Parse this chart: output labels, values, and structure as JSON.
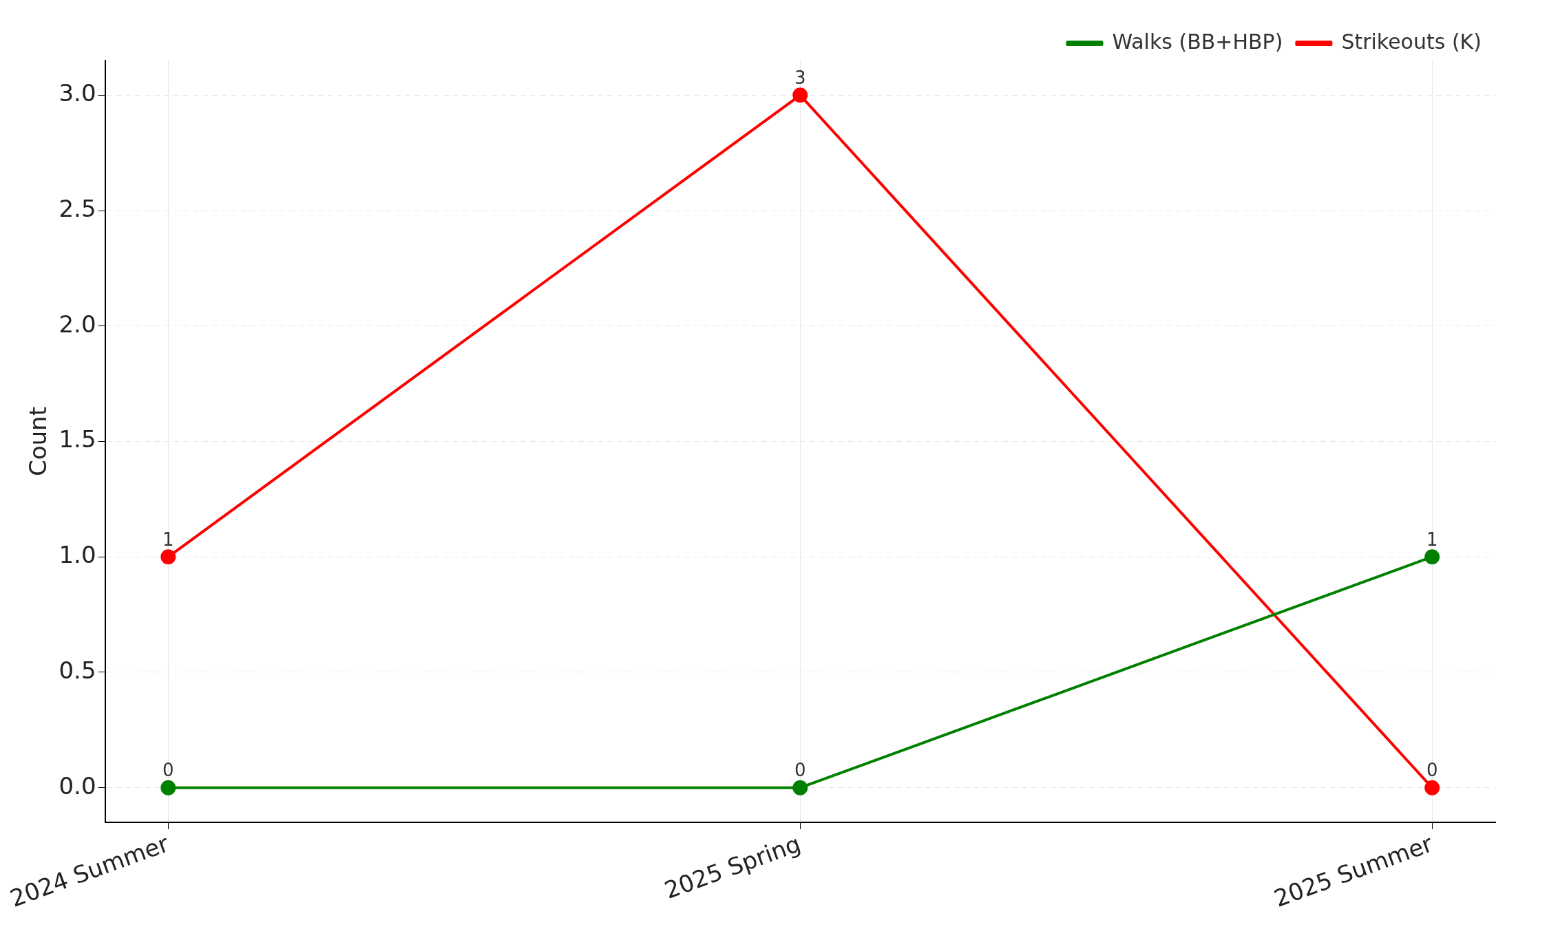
{
  "chart_data": {
    "type": "line",
    "ylabel": "Count",
    "categories": [
      "2024 Summer",
      "2025 Spring",
      "2025 Summer"
    ],
    "series": [
      {
        "name": "Walks (BB+HBP)",
        "color": "#008000",
        "values": [
          0,
          0,
          1
        ]
      },
      {
        "name": "Strikeouts (K)",
        "color": "#ff0000",
        "values": [
          1,
          3,
          0
        ]
      }
    ],
    "ylim": [
      -0.15,
      3.15
    ],
    "yticks": [
      {
        "value": 0,
        "label": "0.0"
      },
      {
        "value": 0.5,
        "label": "0.5"
      },
      {
        "value": 1,
        "label": "1.0"
      },
      {
        "value": 1.5,
        "label": "1.5"
      },
      {
        "value": 2,
        "label": "2.0"
      },
      {
        "value": 2.5,
        "label": "2.5"
      },
      {
        "value": 3,
        "label": "3.0"
      }
    ],
    "grid": true,
    "legend": "top right",
    "marker": "circle",
    "line_style": "solid",
    "data_labels": true
  }
}
